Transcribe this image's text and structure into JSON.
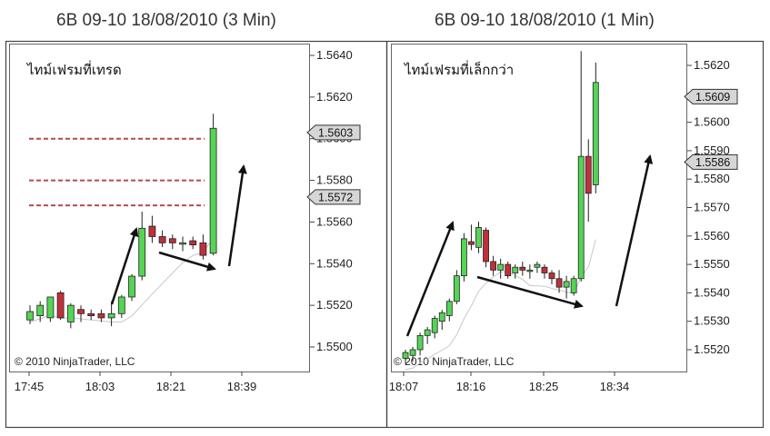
{
  "charts": [
    {
      "title": "6B 09-10  18/08/2010 (3 Min)",
      "label": "ไทม์เฟรมที่เทรด",
      "copyright": "© 2010 NinjaTrader, LLC"
    },
    {
      "title": "6B 09-10  18/08/2010 (1 Min)",
      "label": "ไทม์เฟรมที่เล็กกว่า",
      "copyright": "© 2010 NinjaTrader, LLC"
    }
  ],
  "chart_data": [
    {
      "type": "candlestick",
      "title": "6B 09-10  18/08/2010 (3 Min)",
      "ylim": [
        1.549,
        1.5645
      ],
      "y_ticks": [
        "1.5500",
        "1.5520",
        "1.5540",
        "1.5560",
        "1.5580",
        "1.5600",
        "1.5620",
        "1.5640"
      ],
      "x_ticks": [
        "17:45",
        "18:03",
        "18:21",
        "18:39"
      ],
      "price_labels": [
        {
          "text": "1.5603",
          "value": 1.5603
        },
        {
          "text": "1.5572",
          "value": 1.5572
        }
      ],
      "levels": [
        1.56,
        1.558,
        1.5568
      ],
      "candles": [
        {
          "o": 1.5513,
          "h": 1.552,
          "l": 1.5511,
          "c": 1.5517
        },
        {
          "o": 1.5515,
          "h": 1.5522,
          "l": 1.5512,
          "c": 1.552
        },
        {
          "o": 1.5514,
          "h": 1.5524,
          "l": 1.5512,
          "c": 1.5524
        },
        {
          "o": 1.5526,
          "h": 1.5527,
          "l": 1.5513,
          "c": 1.5514
        },
        {
          "o": 1.5512,
          "h": 1.5521,
          "l": 1.5509,
          "c": 1.552
        },
        {
          "o": 1.5518,
          "h": 1.552,
          "l": 1.5512,
          "c": 1.5516
        },
        {
          "o": 1.5516,
          "h": 1.5518,
          "l": 1.5513,
          "c": 1.5515
        },
        {
          "o": 1.5516,
          "h": 1.5518,
          "l": 1.5512,
          "c": 1.5514
        },
        {
          "o": 1.5514,
          "h": 1.5522,
          "l": 1.551,
          "c": 1.5516
        },
        {
          "o": 1.5516,
          "h": 1.5525,
          "l": 1.5514,
          "c": 1.5524
        },
        {
          "o": 1.5524,
          "h": 1.5535,
          "l": 1.5522,
          "c": 1.5534
        },
        {
          "o": 1.5534,
          "h": 1.5565,
          "l": 1.5532,
          "c": 1.5557
        },
        {
          "o": 1.5558,
          "h": 1.5563,
          "l": 1.555,
          "c": 1.5553
        },
        {
          "o": 1.5553,
          "h": 1.5556,
          "l": 1.5548,
          "c": 1.555
        },
        {
          "o": 1.5552,
          "h": 1.5554,
          "l": 1.5547,
          "c": 1.555
        },
        {
          "o": 1.555,
          "h": 1.5553,
          "l": 1.5546,
          "c": 1.555
        },
        {
          "o": 1.5551,
          "h": 1.5553,
          "l": 1.5547,
          "c": 1.5549
        },
        {
          "o": 1.555,
          "h": 1.5554,
          "l": 1.5542,
          "c": 1.5544
        },
        {
          "o": 1.5545,
          "h": 1.5612,
          "l": 1.5544,
          "c": 1.5605
        }
      ]
    },
    {
      "type": "candlestick",
      "title": "6B 09-10  18/08/2010 (1 Min)",
      "ylim": [
        1.5512,
        1.563
      ],
      "y_ticks": [
        "1.5520",
        "1.5530",
        "1.5540",
        "1.5550",
        "1.5560",
        "1.5570",
        "1.5580",
        "1.5590",
        "1.5600",
        "1.5610",
        "1.5620"
      ],
      "x_ticks": [
        "18:07",
        "18:16",
        "18:25",
        "18:34"
      ],
      "price_labels": [
        {
          "text": "1.5609",
          "value": 1.5609
        },
        {
          "text": "1.5586",
          "value": 1.5586
        }
      ],
      "candles": [
        {
          "o": 1.5517,
          "h": 1.552,
          "l": 1.5515,
          "c": 1.5519
        },
        {
          "o": 1.5518,
          "h": 1.5521,
          "l": 1.5516,
          "c": 1.552
        },
        {
          "o": 1.552,
          "h": 1.5526,
          "l": 1.5518,
          "c": 1.5525
        },
        {
          "o": 1.5525,
          "h": 1.5528,
          "l": 1.5522,
          "c": 1.5527
        },
        {
          "o": 1.5526,
          "h": 1.5532,
          "l": 1.5524,
          "c": 1.5531
        },
        {
          "o": 1.553,
          "h": 1.5534,
          "l": 1.5527,
          "c": 1.5533
        },
        {
          "o": 1.5532,
          "h": 1.5538,
          "l": 1.553,
          "c": 1.5537
        },
        {
          "o": 1.5537,
          "h": 1.5548,
          "l": 1.5536,
          "c": 1.5546
        },
        {
          "o": 1.5546,
          "h": 1.5561,
          "l": 1.5544,
          "c": 1.5559
        },
        {
          "o": 1.5558,
          "h": 1.5564,
          "l": 1.5555,
          "c": 1.5557
        },
        {
          "o": 1.5556,
          "h": 1.5565,
          "l": 1.5554,
          "c": 1.5563
        },
        {
          "o": 1.5562,
          "h": 1.5563,
          "l": 1.5549,
          "c": 1.5551
        },
        {
          "o": 1.5551,
          "h": 1.5553,
          "l": 1.5546,
          "c": 1.5548
        },
        {
          "o": 1.5548,
          "h": 1.5552,
          "l": 1.5545,
          "c": 1.555
        },
        {
          "o": 1.555,
          "h": 1.5551,
          "l": 1.5545,
          "c": 1.5546
        },
        {
          "o": 1.5547,
          "h": 1.555,
          "l": 1.5545,
          "c": 1.5549
        },
        {
          "o": 1.5549,
          "h": 1.5551,
          "l": 1.5546,
          "c": 1.5548
        },
        {
          "o": 1.5548,
          "h": 1.555,
          "l": 1.5545,
          "c": 1.5548
        },
        {
          "o": 1.5549,
          "h": 1.5551,
          "l": 1.5547,
          "c": 1.555
        },
        {
          "o": 1.5549,
          "h": 1.555,
          "l": 1.5545,
          "c": 1.5547
        },
        {
          "o": 1.5547,
          "h": 1.5548,
          "l": 1.5543,
          "c": 1.5545
        },
        {
          "o": 1.5545,
          "h": 1.5548,
          "l": 1.554,
          "c": 1.5542
        },
        {
          "o": 1.5542,
          "h": 1.5546,
          "l": 1.5538,
          "c": 1.5544
        },
        {
          "o": 1.554,
          "h": 1.5546,
          "l": 1.5539,
          "c": 1.5545
        },
        {
          "o": 1.5545,
          "h": 1.5625,
          "l": 1.5544,
          "c": 1.5588
        },
        {
          "o": 1.5588,
          "h": 1.5594,
          "l": 1.5565,
          "c": 1.5575
        },
        {
          "o": 1.5578,
          "h": 1.5621,
          "l": 1.5575,
          "c": 1.5614
        }
      ]
    }
  ]
}
